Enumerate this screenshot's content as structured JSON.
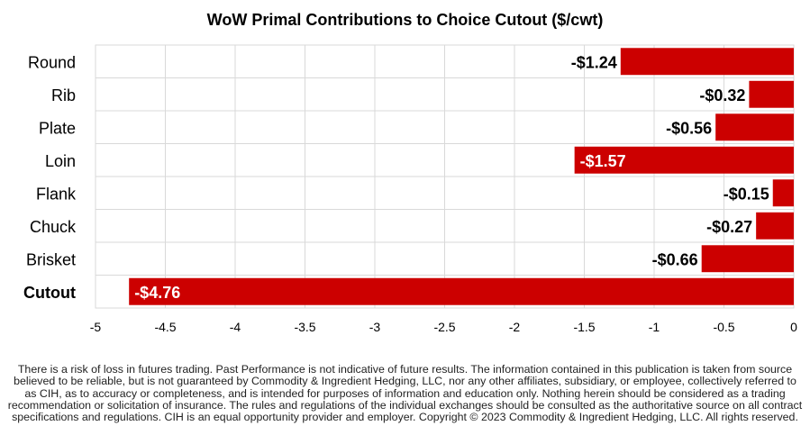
{
  "chart_data": {
    "type": "bar",
    "orientation": "horizontal",
    "title": "WoW Primal Contributions to Choice Cutout ($/cwt)",
    "xlabel": "",
    "ylabel": "",
    "categories": [
      "Round",
      "Rib",
      "Plate",
      "Loin",
      "Flank",
      "Chuck",
      "Brisket",
      "Cutout"
    ],
    "values": [
      -1.24,
      -0.32,
      -0.56,
      -1.57,
      -0.15,
      -0.27,
      -0.66,
      -4.76
    ],
    "data_labels": [
      "-$1.24",
      "-$0.32",
      "-$0.56",
      "-$1.57",
      "-$0.15",
      "-$0.27",
      "-$0.66",
      "-$4.76"
    ],
    "xlim": [
      -5,
      0
    ],
    "xticks": [
      -5,
      -4.5,
      -4,
      -3.5,
      -3,
      -2.5,
      -2,
      -1.5,
      -1,
      -0.5,
      0
    ],
    "xtick_labels": [
      "-5",
      "-4.5",
      "-4",
      "-3.5",
      "-3",
      "-2.5",
      "-2",
      "-1.5",
      "-1",
      "-0.5",
      "0"
    ],
    "bold_category": "Cutout",
    "grid": true,
    "bar_color": "#cc0000",
    "grid_color": "#d9d9d9"
  },
  "disclaimer": "There is a risk of loss in futures trading. Past Performance is not indicative of future results. The information contained in this publication is taken from source believed to be reliable, but is not guaranteed by Commodity & Ingredient Hedging, LLC, nor any other affiliates, subsidiary, or employee, collectively referred to as CIH, as to accuracy or completeness, and is intended for purposes of information and education only. Nothing herein should be considered as a trading recommendation or solicitation of insurance. The rules and regulations of the individual exchanges should be consulted as the authoritative source on all contract specifications and regulations. CIH is an equal opportunity provider and employer. Copyright © 2023 Commodity & Ingredient Hedging, LLC. All rights reserved."
}
